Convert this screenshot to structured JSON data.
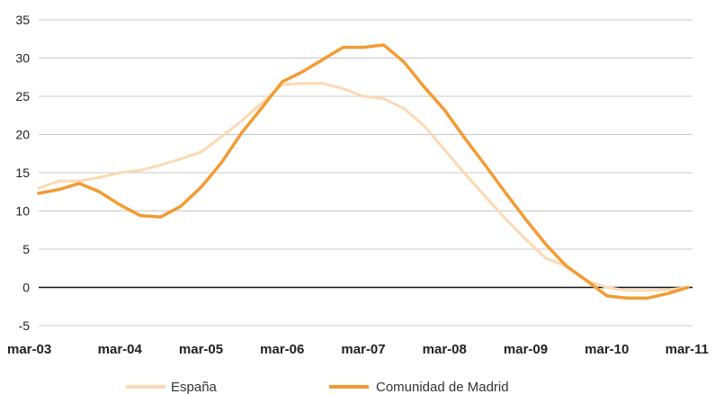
{
  "chart_data": {
    "type": "line",
    "title": "",
    "xlabel": "",
    "ylabel": "",
    "ylim": [
      -5,
      35
    ],
    "yticks": [
      35,
      30,
      25,
      20,
      15,
      10,
      5,
      0,
      -5
    ],
    "xtick_labels": [
      "mar-03",
      "mar-04",
      "mar-05",
      "mar-06",
      "mar-07",
      "mar-08",
      "mar-09",
      "mar-10",
      "mar-11"
    ],
    "grid": true,
    "legend_position": "bottom",
    "x": [
      "mar-03",
      "jun-03",
      "sep-03",
      "dic-03",
      "mar-04",
      "jun-04",
      "sep-04",
      "dic-04",
      "mar-05",
      "jun-05",
      "sep-05",
      "dic-05",
      "mar-06",
      "jun-06",
      "sep-06",
      "dic-06",
      "mar-07",
      "jun-07",
      "sep-07",
      "dic-07",
      "mar-08",
      "jun-08",
      "sep-08",
      "dic-08",
      "mar-09",
      "jun-09",
      "sep-09",
      "dic-09",
      "mar-10",
      "jun-10",
      "sep-10",
      "dic-10",
      "mar-11"
    ],
    "series": [
      {
        "name": "España",
        "color": "#fbd9b3",
        "values": [
          13.0,
          13.9,
          13.9,
          14.4,
          15.0,
          15.3,
          16.0,
          16.8,
          17.7,
          19.7,
          21.8,
          24.1,
          26.5,
          26.7,
          26.7,
          26.0,
          25.0,
          24.7,
          23.4,
          21.1,
          18.0,
          14.9,
          11.9,
          9.0,
          6.3,
          3.8,
          2.8,
          0.9,
          0.0,
          -0.4,
          -0.4,
          -0.3,
          0.0
        ]
      },
      {
        "name": "Comunidad de Madrid",
        "color": "#f29b34",
        "values": [
          12.3,
          12.8,
          13.6,
          12.5,
          10.8,
          9.4,
          9.2,
          10.6,
          13.1,
          16.3,
          20.2,
          23.5,
          26.9,
          28.2,
          29.8,
          31.4,
          31.4,
          31.7,
          29.5,
          26.2,
          23.2,
          19.5,
          16.0,
          12.4,
          8.9,
          5.6,
          2.8,
          0.9,
          -1.1,
          -1.4,
          -1.4,
          -0.8,
          0.0
        ]
      }
    ]
  }
}
